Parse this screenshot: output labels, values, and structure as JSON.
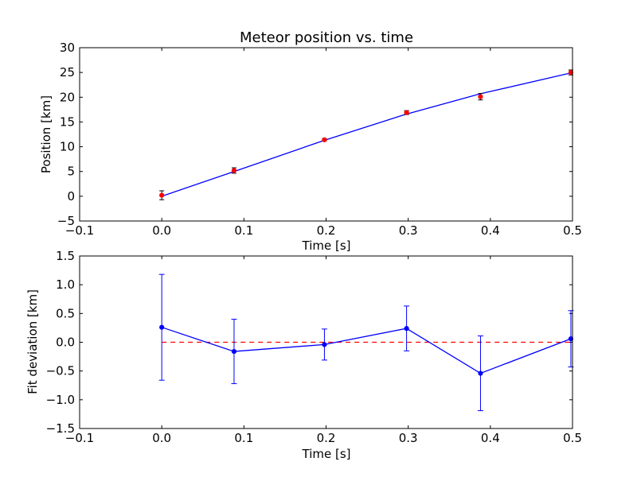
{
  "chart_data": [
    {
      "type": "line",
      "title": "Meteor position vs. time",
      "xlabel": "Time [s]",
      "ylabel": "Position [km]",
      "xlim": [
        -0.1,
        0.5
      ],
      "ylim": [
        -5,
        30
      ],
      "xticks": [
        "−0.1",
        "0.0",
        "0.1",
        "0.2",
        "0.3",
        "0.4",
        "0.5"
      ],
      "xtick_values": [
        -0.1,
        0.0,
        0.1,
        0.2,
        0.3,
        0.4,
        0.5
      ],
      "yticks": [
        "−5",
        "0",
        "5",
        "10",
        "15",
        "20",
        "25",
        "30"
      ],
      "ytick_values": [
        -5,
        0,
        5,
        10,
        15,
        20,
        25,
        30
      ],
      "grid": false,
      "legend": "none",
      "series": [
        {
          "style": "fit-line",
          "color": "#0000ff",
          "x": [
            0.0,
            0.088,
            0.198,
            0.298,
            0.388,
            0.498
          ],
          "y": [
            0.0,
            5.0,
            11.3,
            16.6,
            20.7,
            24.9
          ]
        },
        {
          "style": "errorbar-points",
          "color": "#ff0000",
          "x": [
            0.0,
            0.088,
            0.198,
            0.298,
            0.388,
            0.498
          ],
          "y": [
            0.2,
            5.2,
            11.4,
            16.9,
            20.1,
            25.0
          ],
          "yerr": [
            0.9,
            0.55,
            0.25,
            0.4,
            0.65,
            0.5
          ]
        }
      ]
    },
    {
      "type": "line",
      "title": "",
      "xlabel": "Time [s]",
      "ylabel": "Fit deviation [km]",
      "xlim": [
        -0.1,
        0.5
      ],
      "ylim": [
        -1.5,
        1.5
      ],
      "xticks": [
        "−0.1",
        "0.0",
        "0.1",
        "0.2",
        "0.3",
        "0.4",
        "0.5"
      ],
      "xtick_values": [
        -0.1,
        0.0,
        0.1,
        0.2,
        0.3,
        0.4,
        0.5
      ],
      "yticks": [
        "−1.5",
        "−1.0",
        "−0.5",
        "0.0",
        "0.5",
        "1.0",
        "1.5"
      ],
      "ytick_values": [
        -1.5,
        -1.0,
        -0.5,
        0.0,
        0.5,
        1.0,
        1.5
      ],
      "grid": false,
      "legend": "none",
      "reference_line": {
        "y": 0.0,
        "color": "#ff0000",
        "style": "dashed"
      },
      "series": [
        {
          "style": "errorbar-line",
          "color": "#0000ff",
          "x": [
            0.0,
            0.088,
            0.198,
            0.298,
            0.388,
            0.498
          ],
          "y": [
            0.26,
            -0.16,
            -0.04,
            0.24,
            -0.54,
            0.06
          ],
          "yerr": [
            0.92,
            0.56,
            0.27,
            0.39,
            0.65,
            0.49
          ]
        }
      ]
    }
  ]
}
